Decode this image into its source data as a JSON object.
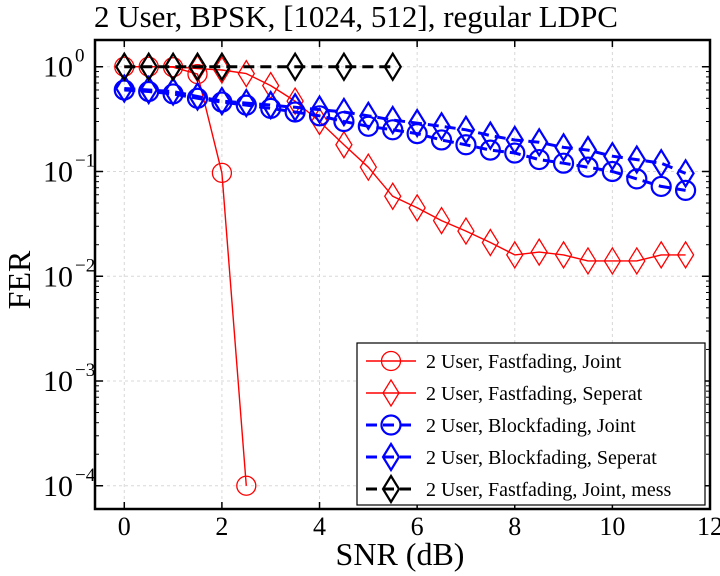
{
  "chart_data": {
    "type": "line",
    "title": "2 User, BPSK, [1024, 512], regular LDPC",
    "xlabel": "SNR (dB)",
    "ylabel": "FER",
    "xlim": [
      -0.6,
      12.0
    ],
    "ylim": [
      6e-05,
      1.8
    ],
    "yscale": "log",
    "grid": true,
    "legend_position": "lower-right",
    "x_ticks": [
      0,
      2,
      4,
      6,
      8,
      10,
      12
    ],
    "x_tick_labels": [
      "0",
      "2",
      "4",
      "6",
      "8",
      "10",
      "12"
    ],
    "y_ticks": [
      0.0001,
      0.001,
      0.01,
      0.1,
      1
    ],
    "y_tick_labels": [
      {
        "base": "10",
        "exp": "−4"
      },
      {
        "base": "10",
        "exp": "−3"
      },
      {
        "base": "10",
        "exp": "−2"
      },
      {
        "base": "10",
        "exp": "−1"
      },
      {
        "base": "10",
        "exp": "0"
      }
    ],
    "series": [
      {
        "name": "2 User, Fastfading, Joint",
        "color": "#ff0000",
        "marker": "circle",
        "dashed": false,
        "line_width": 1.4,
        "x": [
          0,
          0.5,
          1,
          1.5,
          2,
          2.5
        ],
        "y": [
          1.0,
          1.0,
          0.99,
          0.85,
          0.097,
          0.0001
        ]
      },
      {
        "name": "2 User, Fastfading, Seperat",
        "color": "#ff0000",
        "marker": "diamond",
        "dashed": false,
        "line_width": 1.4,
        "x": [
          0,
          0.5,
          1,
          1.5,
          2,
          2.5,
          3,
          3.5,
          4,
          4.5,
          5,
          5.5,
          6,
          6.5,
          7,
          7.5,
          8,
          8.5,
          9,
          9.5,
          10,
          10.5,
          11,
          11.5
        ],
        "y": [
          1.0,
          1.0,
          1.0,
          0.96,
          0.93,
          0.86,
          0.66,
          0.47,
          0.3,
          0.18,
          0.11,
          0.058,
          0.045,
          0.034,
          0.027,
          0.021,
          0.016,
          0.017,
          0.016,
          0.014,
          0.014,
          0.014,
          0.016,
          0.016
        ]
      },
      {
        "name": "2 User, Blockfading, Joint",
        "color": "#0000ff",
        "marker": "circle",
        "dashed": true,
        "line_width": 3,
        "x": [
          0,
          0.5,
          1,
          1.5,
          2,
          2.5,
          3,
          3.5,
          4,
          4.5,
          5,
          5.5,
          6,
          6.5,
          7,
          7.5,
          8,
          8.5,
          9,
          9.5,
          10,
          10.5,
          11,
          11.5
        ],
        "y": [
          0.6,
          0.58,
          0.55,
          0.5,
          0.46,
          0.43,
          0.4,
          0.37,
          0.34,
          0.3,
          0.27,
          0.25,
          0.23,
          0.2,
          0.18,
          0.16,
          0.15,
          0.13,
          0.12,
          0.11,
          0.1,
          0.085,
          0.072,
          0.066
        ]
      },
      {
        "name": "2 User, Blockfading, Seperat",
        "color": "#0000ff",
        "marker": "diamond",
        "dashed": true,
        "line_width": 3,
        "x": [
          0,
          0.5,
          1,
          1.5,
          2,
          2.5,
          3,
          3.5,
          4,
          4.5,
          5,
          5.5,
          6,
          6.5,
          7,
          7.5,
          8,
          8.5,
          9,
          9.5,
          10,
          10.5,
          11,
          11.5
        ],
        "y": [
          0.62,
          0.6,
          0.58,
          0.52,
          0.47,
          0.45,
          0.43,
          0.41,
          0.39,
          0.37,
          0.34,
          0.31,
          0.29,
          0.27,
          0.25,
          0.22,
          0.2,
          0.19,
          0.17,
          0.16,
          0.14,
          0.13,
          0.12,
          0.096
        ]
      },
      {
        "name": "2 User, Fastfading, Joint, mess",
        "color": "#000000",
        "marker": "diamond",
        "dashed": true,
        "line_width": 3,
        "x": [
          0,
          0.5,
          1,
          1.5,
          2,
          3.5,
          4.5,
          5.5
        ],
        "y": [
          1.0,
          1.0,
          1.0,
          1.0,
          1.0,
          1.0,
          1.0,
          1.0
        ]
      }
    ]
  }
}
